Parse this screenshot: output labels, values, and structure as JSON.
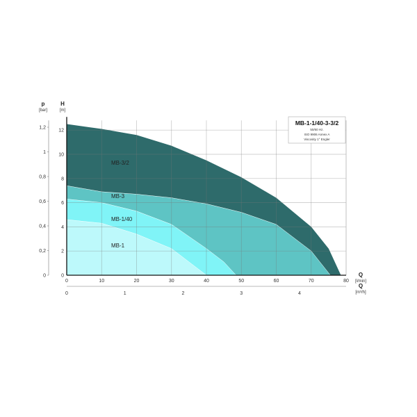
{
  "chart_data": {
    "type": "area",
    "title": "MB-1-1/40-3-3/2",
    "info_lines": [
      "50/60 Hz.",
      "ISO 9906 Annex A",
      "Viscosity 1° Engler"
    ],
    "xlabel": "Q",
    "xunit": "[l/min]",
    "x2label": "Q",
    "x2unit": "[m³/h]",
    "ylabel": "H",
    "yunit": "[m]",
    "y2label": "p",
    "y2unit": "[bar]",
    "xlim": [
      0,
      80
    ],
    "ylim": [
      0,
      12.8
    ],
    "x_ticks": [
      0,
      10,
      20,
      30,
      40,
      50,
      60,
      70,
      80
    ],
    "x2_ticks": [
      "0",
      "1",
      "2",
      "3",
      "4"
    ],
    "y_ticks": [
      0,
      2,
      4,
      6,
      8,
      10,
      12
    ],
    "y2_ticks": [
      "0",
      "0,2",
      "0,4",
      "0,6",
      "0,8",
      "1",
      "1,2"
    ],
    "grid": true,
    "series": [
      {
        "name": "MB-3/2",
        "color": "#2e6b6b",
        "x": [
          0,
          10,
          20,
          30,
          40,
          50,
          60,
          70,
          75,
          78.5
        ],
        "y": [
          12.5,
          12.1,
          11.6,
          10.7,
          9.5,
          8.1,
          6.4,
          4.0,
          2.2,
          0
        ]
      },
      {
        "name": "MB-3",
        "color": "#5ec4c4",
        "x": [
          0,
          10,
          20,
          30,
          40,
          50,
          60,
          70,
          75.5
        ],
        "y": [
          7.4,
          6.9,
          6.7,
          6.4,
          5.9,
          5.2,
          4.2,
          2.0,
          0
        ]
      },
      {
        "name": "MB-1/40",
        "color": "#80f4f7",
        "x": [
          0,
          10,
          20,
          30,
          40,
          45,
          48.5
        ],
        "y": [
          6.3,
          6.0,
          5.3,
          4.2,
          2.2,
          1.1,
          0
        ]
      },
      {
        "name": "MB-1",
        "color": "#bdf9fb",
        "x": [
          0,
          10,
          20,
          30,
          35,
          40
        ],
        "y": [
          4.6,
          4.3,
          3.4,
          2.2,
          1.1,
          0
        ]
      }
    ]
  }
}
